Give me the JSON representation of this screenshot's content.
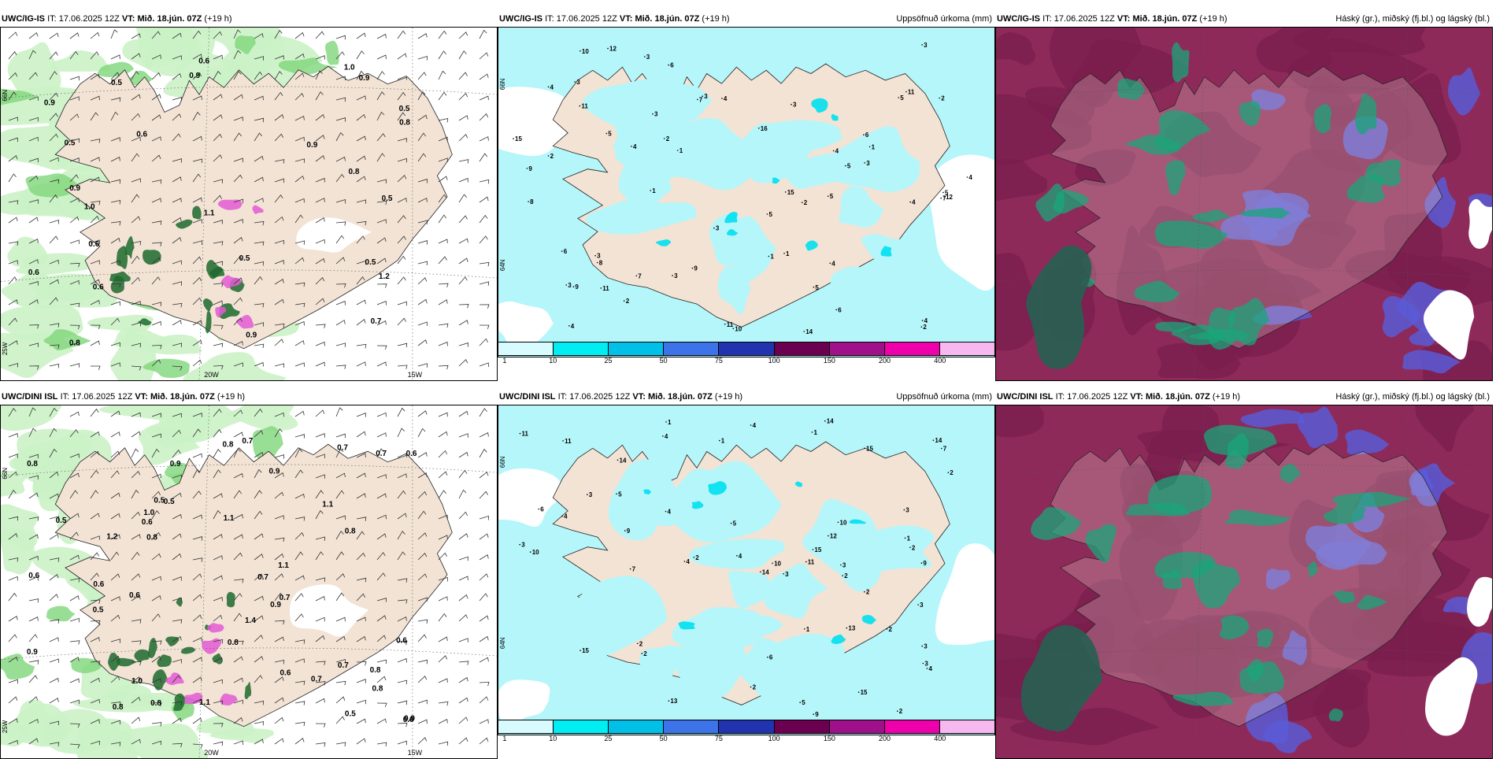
{
  "rows": [
    {
      "model": "UWC/IG-IS",
      "it_label": "IT:",
      "it_value": "17.06.2025 12Z",
      "vt_label": "VT:",
      "vt_value": "Mið. 18.jún. 07Z",
      "lead": "(+19 h)",
      "axis_labels": {
        "lat66": "66N",
        "lat64": "64N",
        "lon20": "20W",
        "lon15": "15W",
        "lat25": "25W"
      },
      "wind_labels": [
        "0.8",
        "0.5",
        "0.5",
        "0.5",
        "0.9",
        "0.5",
        "0.6",
        "0.6",
        "0.9",
        "0.6",
        "0.9",
        "0.6",
        "0.6",
        "0.9",
        "0.7",
        "0.8",
        "0.5",
        "0.5",
        "1.0",
        "1.1",
        "0.8",
        "0.9",
        "1.2",
        "1.0",
        "0.9"
      ],
      "precip_labels": [
        "1",
        "1",
        "3",
        "3",
        "2",
        "1",
        "4",
        "5",
        "3",
        "5",
        "11",
        "7",
        "11",
        "10",
        "15",
        "3",
        "6",
        "5",
        "4",
        "8",
        "6",
        "7",
        "14",
        "11",
        "4",
        "2",
        "3",
        "5",
        "9",
        "4",
        "4",
        "6",
        "12",
        "11",
        "7",
        "5",
        "6",
        "10",
        "16",
        "9",
        "4",
        "8",
        "3",
        "3",
        "12",
        "9",
        "4",
        "4",
        "5",
        "15",
        "2",
        "5",
        "3",
        "3",
        "1",
        "2",
        "2",
        "2",
        "3",
        "4",
        "3",
        "1"
      ],
      "precip_title": "Uppsöfnuð úrkoma (mm)",
      "cloud_title": "Háský (gr.), miðský (fj.bl.) og lágský (bl.)"
    },
    {
      "model": "UWC/DINI ISL",
      "it_label": "IT:",
      "it_value": "17.06.2025 12Z",
      "vt_label": "VT:",
      "vt_value": "Mið. 18.jún. 07Z",
      "lead": "(+19 h)",
      "axis_labels": {
        "lat66": "66N",
        "lat64": "64N",
        "lon20": "20W",
        "lon15": "15W",
        "lat25": "25W"
      },
      "wind_labels": [
        "0.8",
        "0.5",
        "0.5",
        "0.6",
        "0.7",
        "0.8",
        "0.8",
        "0.5",
        "0.7",
        "0.9",
        "0.7",
        "0.9",
        "0.6",
        "0.5",
        "0.7",
        "0.9",
        "0.8",
        "0.9",
        "1.1",
        "1.4",
        "0.6",
        "0.6",
        "0.8",
        "0.8",
        "0.6",
        "0.9",
        "0.8",
        "0.5",
        "0.8",
        "0.6",
        "1.0",
        "1.2",
        "0.6",
        "0.7",
        "1.1",
        "0.7",
        "1.0",
        "0.6",
        "0.8",
        "0.7",
        "1.1",
        "1.1"
      ],
      "precip_labels": [
        "2",
        "4",
        "3",
        "2",
        "1",
        "4",
        "3",
        "4",
        "1",
        "2",
        "4",
        "3",
        "10",
        "12",
        "10",
        "15",
        "11",
        "6",
        "10",
        "14",
        "13",
        "15",
        "9",
        "9",
        "7",
        "5",
        "4",
        "2",
        "5",
        "4",
        "3",
        "14",
        "15",
        "14",
        "15",
        "11",
        "9",
        "11",
        "5",
        "14",
        "13",
        "4",
        "3",
        "3",
        "2",
        "3",
        "2",
        "1",
        "2",
        "6",
        "7",
        "2",
        "2",
        "1",
        "1",
        "3",
        "2"
      ],
      "precip_title": "Uppsöfnuð úrkoma (mm)",
      "cloud_title": "Háský (gr.), miðský (fj.bl.) og lágský (bl.)"
    }
  ],
  "legend": {
    "values": [
      "1",
      "10",
      "25",
      "50",
      "75",
      "100",
      "150",
      "200",
      "400"
    ],
    "colors": [
      "#d8fbff",
      "#00eef3",
      "#00c0e8",
      "#3d73e8",
      "#2233b0",
      "#6b0050",
      "#a0108a",
      "#ee00aa",
      "#f7b8ef"
    ]
  },
  "colors": {
    "land": "#f2e3d5",
    "precip_light": "#b5f6fa",
    "precip_mid": "#00e0ef",
    "wind_green_light": "#cbf2c6",
    "wind_green": "#7fd67a",
    "wind_green_dark": "#1e6a2e",
    "cloud_high": "#1aa57a",
    "cloud_mid": "#7a1e4e",
    "cloud_low": "#5a5ad6"
  }
}
